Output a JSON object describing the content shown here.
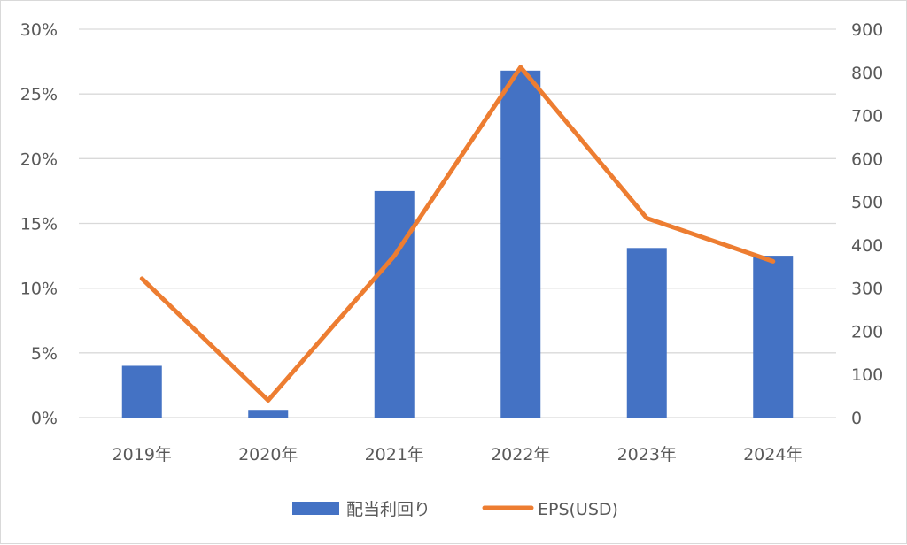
{
  "chart_data": {
    "type": "bar+line",
    "categories": [
      "2019年",
      "2020年",
      "2021年",
      "2022年",
      "2023年",
      "2024年"
    ],
    "series": [
      {
        "name": "配当利回り",
        "type": "bar",
        "axis": "left",
        "color": "#4472C4",
        "values": [
          4.0,
          0.6,
          17.5,
          26.8,
          13.1,
          12.5
        ]
      },
      {
        "name": "EPS(USD)",
        "type": "line",
        "axis": "right",
        "color": "#ED7D31",
        "values": [
          322,
          40,
          375,
          812,
          462,
          362
        ]
      }
    ],
    "y_left": {
      "min": 0,
      "max": 30,
      "ticks": [
        "0%",
        "5%",
        "10%",
        "15%",
        "20%",
        "25%",
        "30%"
      ]
    },
    "y_right": {
      "min": 0,
      "max": 900,
      "ticks": [
        "0",
        "100",
        "200",
        "300",
        "400",
        "500",
        "600",
        "700",
        "800",
        "900"
      ]
    },
    "grid": true,
    "gridColor": "#d9d9d9",
    "legend": "bottom",
    "title": ""
  }
}
